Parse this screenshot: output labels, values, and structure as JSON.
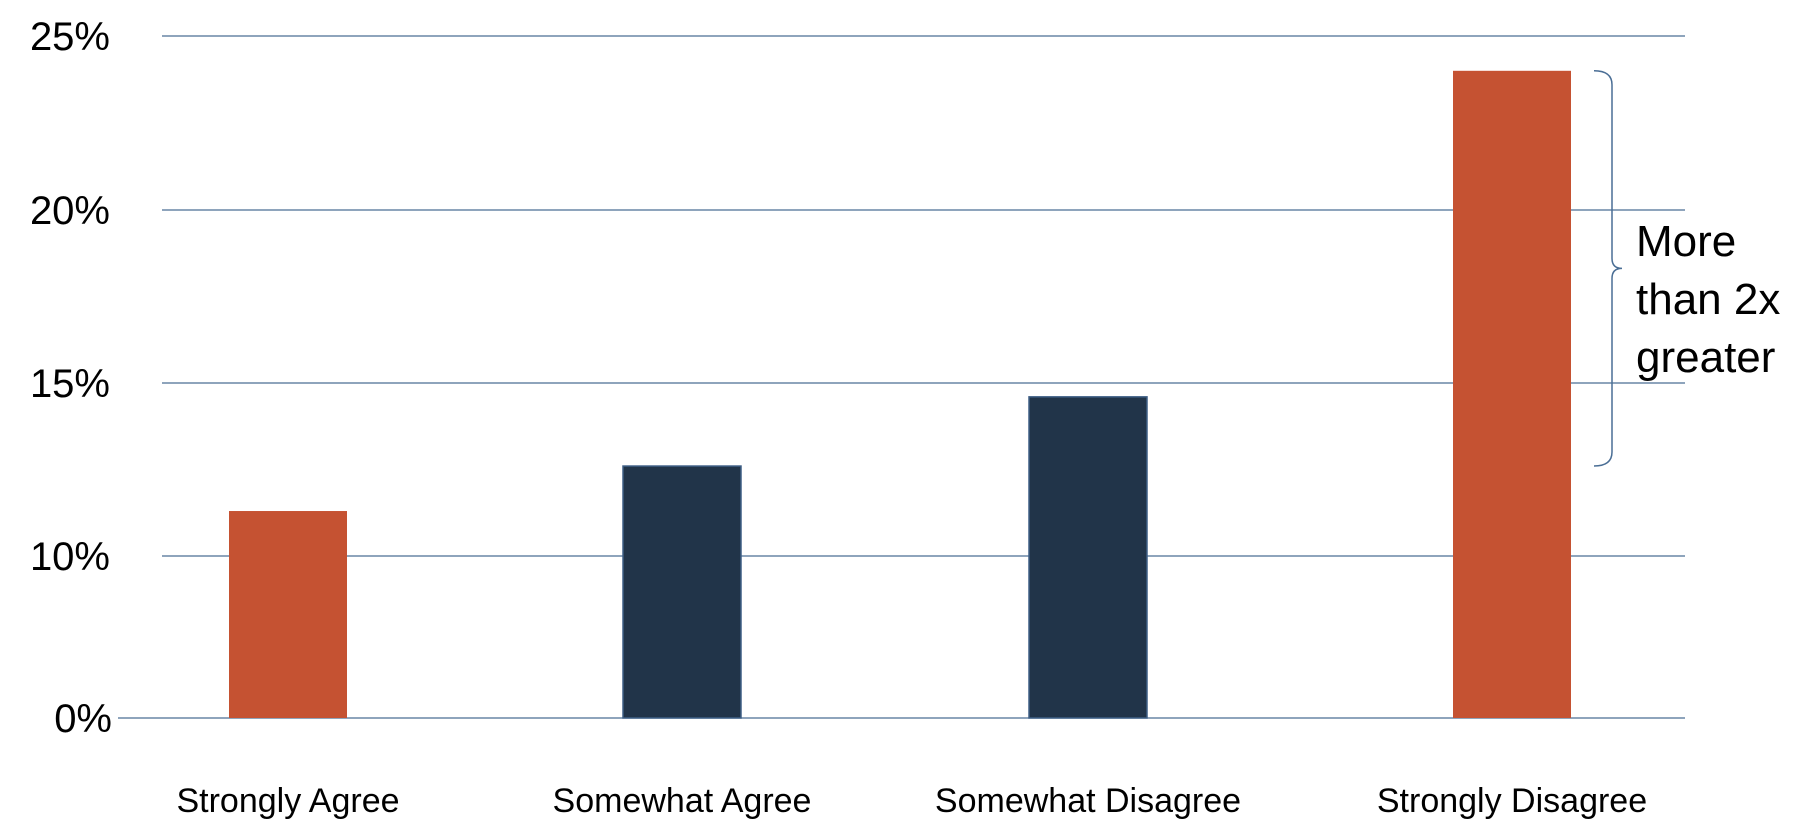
{
  "chart_data": {
    "type": "bar",
    "categories": [
      "Strongly Agree",
      "Somewhat Agree",
      "Somewhat Disagree",
      "Strongly Disagree"
    ],
    "values": [
      11.3,
      12.6,
      14.6,
      24.0
    ],
    "colors": [
      "#C55232",
      "#213449",
      "#213449",
      "#C55232"
    ],
    "y_ticks": [
      {
        "value": 0,
        "label": "0%"
      },
      {
        "value": 10,
        "label": "10%"
      },
      {
        "value": 15,
        "label": "15%"
      },
      {
        "value": 20,
        "label": "20%"
      },
      {
        "value": 25,
        "label": "25%"
      }
    ],
    "ylim": [
      0,
      25
    ],
    "grid": true,
    "gridline_color": "#4A6E95",
    "annotation": {
      "lines": [
        "More",
        "than 2x",
        "greater"
      ],
      "bracket_from": 12.6,
      "bracket_to": 24.0
    }
  }
}
